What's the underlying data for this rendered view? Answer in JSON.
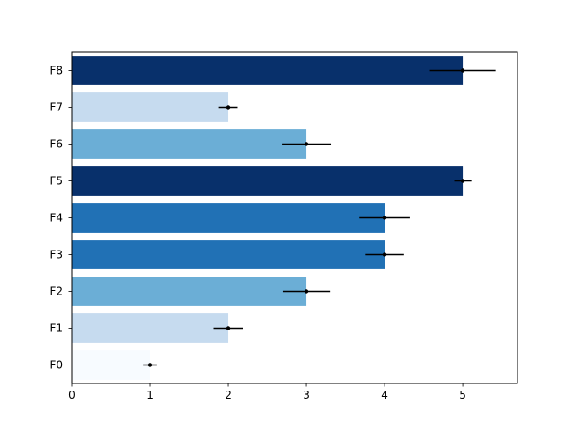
{
  "chart_data": {
    "type": "bar",
    "orientation": "horizontal",
    "categories": [
      "F0",
      "F1",
      "F2",
      "F3",
      "F4",
      "F5",
      "F6",
      "F7",
      "F8"
    ],
    "values": [
      1,
      2,
      3,
      4,
      4,
      5,
      3,
      2,
      5
    ],
    "errors": [
      0.09,
      0.19,
      0.3,
      0.25,
      0.32,
      0.11,
      0.31,
      0.12,
      0.42
    ],
    "bar_colors": [
      "#f7fbff",
      "#c6dbef",
      "#6baed6",
      "#2171b5",
      "#2171b5",
      "#08306b",
      "#6baed6",
      "#c6dbef",
      "#08306b"
    ],
    "error_color": "#000000",
    "xlim": [
      0,
      5.7
    ],
    "xticks": [
      "0",
      "1",
      "2",
      "3",
      "4",
      "5"
    ],
    "title": "",
    "xlabel": "",
    "ylabel": "",
    "grid": false,
    "legend": false
  }
}
